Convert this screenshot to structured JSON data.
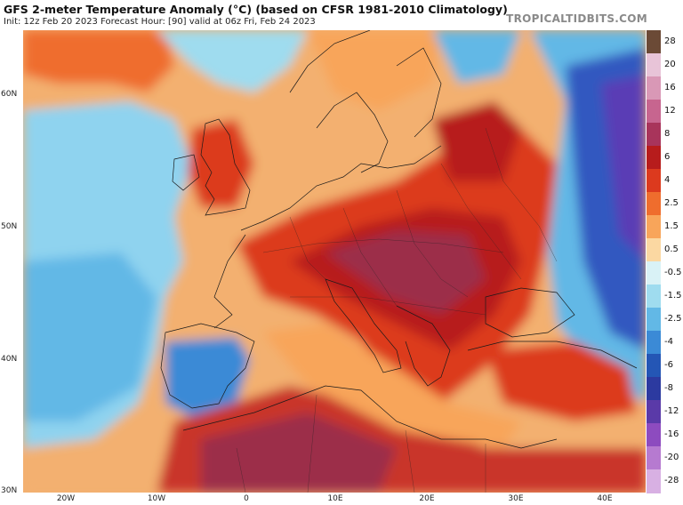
{
  "header": {
    "title": "GFS 2-meter Temperature Anomaly (°C) (based on CFSR 1981-2010 Climatology)",
    "subtitle": "Init: 12z Feb 20 2023   Forecast Hour: [90]   valid at 06z Fri, Feb 24 2023",
    "brand": "TROPICALTIDBITS.COM"
  },
  "axes": {
    "lat_labels": [
      "60N",
      "50N",
      "40N",
      "30N"
    ],
    "lon_labels": [
      "20W",
      "10W",
      "0",
      "10E",
      "20E",
      "30E",
      "40E"
    ]
  },
  "colorbar": {
    "labels": [
      "28",
      "20",
      "16",
      "12",
      "8",
      "6",
      "4",
      "2.5",
      "1.5",
      "0.5",
      "-0.5",
      "-1.5",
      "-2.5",
      "-4",
      "-6",
      "-8",
      "-12",
      "-16",
      "-20",
      "-28"
    ],
    "colors": [
      "#6b4a36",
      "#e8c4d8",
      "#d998b6",
      "#c7658f",
      "#a8345b",
      "#b71c1c",
      "#dc3a1e",
      "#ef6d2d",
      "#f8a55a",
      "#fbd8a2",
      "#d9f2f6",
      "#9fdcef",
      "#62b8e6",
      "#3b8ad6",
      "#2456b5",
      "#2c3aa0",
      "#5a3aa8",
      "#8d4bbf",
      "#b67ad0",
      "#d8b0e3"
    ]
  },
  "map_colors": {
    "ocean_cold": "#8fd3ef",
    "ocean_warm": "#f3b070",
    "strong_warm": "#c9352a",
    "very_warm": "#9c2f4a",
    "cold": "#3158c0",
    "very_cold": "#5a3db5"
  }
}
